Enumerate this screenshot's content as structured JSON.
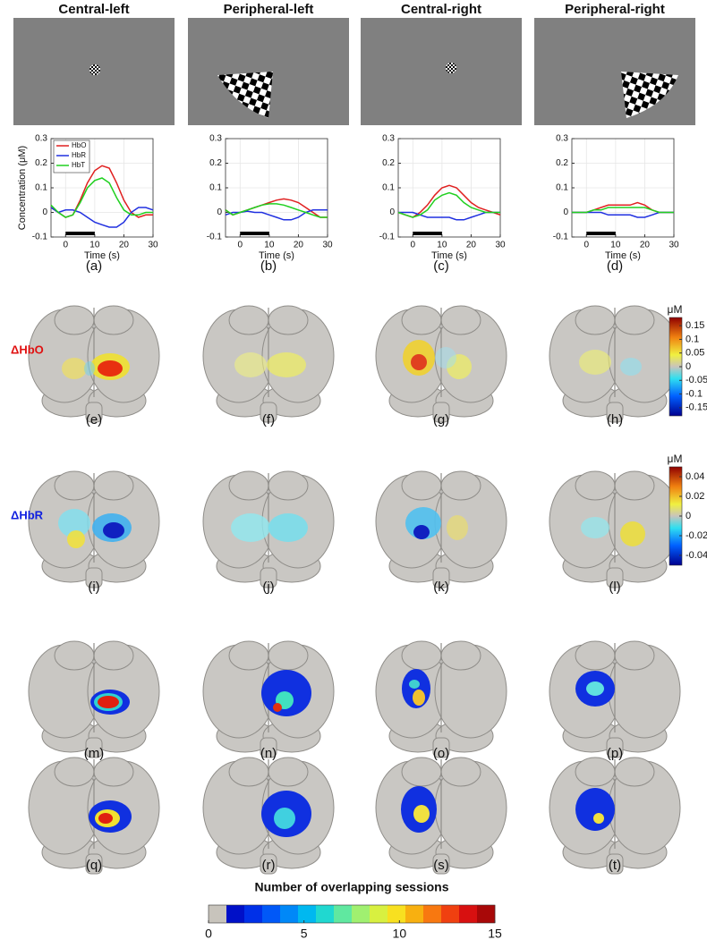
{
  "column_titles": [
    "Central-left",
    "Peripheral-left",
    "Central-right",
    "Peripheral-right"
  ],
  "chart_data": [
    {
      "type": "line",
      "y_label": "Concentration (μM)",
      "x_label": "Time (s)",
      "legend": true,
      "x": [
        -5,
        -2.5,
        0,
        2.5,
        5,
        7.5,
        10,
        12.5,
        15,
        17.5,
        20,
        22.5,
        25,
        27.5,
        30
      ],
      "xlim": [
        -5,
        30
      ],
      "xticks": [
        0,
        10,
        20,
        30
      ],
      "ylim": [
        -0.1,
        0.3
      ],
      "yticks": [
        -0.1,
        0,
        0.1,
        0.2,
        0.3
      ],
      "grid": true,
      "stimulus": [
        0,
        10
      ],
      "series": [
        {
          "name": "HbO",
          "color": "#e02020",
          "values": [
            0.02,
            0.0,
            -0.02,
            -0.01,
            0.05,
            0.12,
            0.17,
            0.19,
            0.18,
            0.12,
            0.05,
            0.0,
            -0.02,
            -0.01,
            -0.01
          ]
        },
        {
          "name": "HbR",
          "color": "#2030e0",
          "values": [
            0.02,
            0.0,
            0.01,
            0.01,
            0.0,
            -0.02,
            -0.04,
            -0.05,
            -0.06,
            -0.06,
            -0.04,
            0.0,
            0.02,
            0.02,
            0.01
          ]
        },
        {
          "name": "HbT",
          "color": "#20d020",
          "values": [
            0.03,
            0.0,
            -0.02,
            -0.01,
            0.04,
            0.1,
            0.13,
            0.14,
            0.12,
            0.06,
            0.01,
            -0.01,
            -0.01,
            0.0,
            0.0
          ]
        }
      ]
    },
    {
      "type": "line",
      "x_label": "Time (s)",
      "legend": false,
      "x": [
        -5,
        -2.5,
        0,
        2.5,
        5,
        7.5,
        10,
        12.5,
        15,
        17.5,
        20,
        22.5,
        25,
        27.5,
        30
      ],
      "xlim": [
        -5,
        30
      ],
      "xticks": [
        0,
        10,
        20,
        30
      ],
      "ylim": [
        -0.1,
        0.3
      ],
      "yticks": [
        -0.1,
        0,
        0.1,
        0.2,
        0.3
      ],
      "grid": true,
      "stimulus": [
        0,
        10
      ],
      "series": [
        {
          "name": "HbO",
          "color": "#e02020",
          "values": [
            0.01,
            -0.01,
            0.0,
            0.01,
            0.02,
            0.03,
            0.04,
            0.05,
            0.055,
            0.05,
            0.04,
            0.02,
            0.0,
            -0.02,
            -0.02
          ]
        },
        {
          "name": "HbR",
          "color": "#2030e0",
          "values": [
            -0.01,
            0.0,
            0.0,
            0.005,
            0.0,
            0.0,
            -0.01,
            -0.02,
            -0.03,
            -0.03,
            -0.02,
            0.0,
            0.01,
            0.01,
            0.01
          ]
        },
        {
          "name": "HbT",
          "color": "#20d020",
          "values": [
            0.01,
            -0.01,
            0.0,
            0.01,
            0.02,
            0.03,
            0.035,
            0.035,
            0.03,
            0.02,
            0.01,
            0.0,
            -0.01,
            -0.02,
            -0.02
          ]
        }
      ]
    },
    {
      "type": "line",
      "x_label": "Time (s)",
      "legend": false,
      "x": [
        -5,
        -2.5,
        0,
        2.5,
        5,
        7.5,
        10,
        12.5,
        15,
        17.5,
        20,
        22.5,
        25,
        27.5,
        30
      ],
      "xlim": [
        -5,
        30
      ],
      "xticks": [
        0,
        10,
        20,
        30
      ],
      "ylim": [
        -0.1,
        0.3
      ],
      "yticks": [
        -0.1,
        0,
        0.1,
        0.2,
        0.3
      ],
      "grid": true,
      "stimulus": [
        0,
        10
      ],
      "series": [
        {
          "name": "HbO",
          "color": "#e02020",
          "values": [
            0.0,
            -0.01,
            -0.02,
            0.0,
            0.03,
            0.07,
            0.1,
            0.11,
            0.1,
            0.07,
            0.04,
            0.02,
            0.01,
            0.0,
            -0.01
          ]
        },
        {
          "name": "HbR",
          "color": "#2030e0",
          "values": [
            0.0,
            0.0,
            0.0,
            -0.01,
            -0.02,
            -0.02,
            -0.02,
            -0.02,
            -0.03,
            -0.03,
            -0.02,
            -0.01,
            0.0,
            0.0,
            0.0
          ]
        },
        {
          "name": "HbT",
          "color": "#20d020",
          "values": [
            0.0,
            -0.01,
            -0.02,
            -0.01,
            0.01,
            0.05,
            0.07,
            0.08,
            0.07,
            0.04,
            0.02,
            0.01,
            0.0,
            0.0,
            0.0
          ]
        }
      ]
    },
    {
      "type": "line",
      "x_label": "Time (s)",
      "legend": false,
      "x": [
        -5,
        -2.5,
        0,
        2.5,
        5,
        7.5,
        10,
        12.5,
        15,
        17.5,
        20,
        22.5,
        25,
        27.5,
        30
      ],
      "xlim": [
        -5,
        30
      ],
      "xticks": [
        0,
        10,
        20,
        30
      ],
      "ylim": [
        -0.1,
        0.3
      ],
      "yticks": [
        -0.1,
        0,
        0.1,
        0.2,
        0.3
      ],
      "grid": true,
      "stimulus": [
        0,
        10
      ],
      "series": [
        {
          "name": "HbO",
          "color": "#e02020",
          "values": [
            0.0,
            0.0,
            0.0,
            0.01,
            0.02,
            0.03,
            0.03,
            0.03,
            0.03,
            0.04,
            0.03,
            0.01,
            0.0,
            0.0,
            0.0
          ]
        },
        {
          "name": "HbR",
          "color": "#2030e0",
          "values": [
            0.0,
            0.0,
            0.0,
            0.0,
            0.0,
            -0.01,
            -0.01,
            -0.01,
            -0.01,
            -0.02,
            -0.02,
            -0.01,
            0.0,
            0.0,
            0.0
          ]
        },
        {
          "name": "HbT",
          "color": "#20d020",
          "values": [
            0.0,
            0.0,
            0.0,
            0.01,
            0.01,
            0.02,
            0.02,
            0.02,
            0.02,
            0.02,
            0.02,
            0.01,
            0.0,
            0.0,
            0.0
          ]
        }
      ]
    }
  ],
  "panel_labels": [
    "(a)",
    "(b)",
    "(c)",
    "(d)",
    "(e)",
    "(f)",
    "(g)",
    "(h)",
    "(i)",
    "(j)",
    "(k)",
    "(l)",
    "(m)",
    "(n)",
    "(o)",
    "(p)",
    "(q)",
    "(r)",
    "(s)",
    "(t)"
  ],
  "row_labels": [
    {
      "text": "ΔHbO",
      "color": "#e01010"
    },
    {
      "text": "ΔHbR",
      "color": "#1020e0"
    }
  ],
  "colorbars": [
    {
      "unit": "μM",
      "lim": [
        -0.18,
        0.18
      ],
      "ticks": [
        0.15,
        0.1,
        0.05,
        0,
        -0.05,
        -0.1,
        -0.15
      ]
    },
    {
      "unit": "μM",
      "lim": [
        -0.05,
        0.05
      ],
      "ticks": [
        0.04,
        0.02,
        0,
        -0.02,
        -0.04
      ]
    }
  ],
  "session_colorbar": {
    "title": "Number of overlapping sessions",
    "lim": [
      0,
      15
    ],
    "ticks": [
      0,
      5,
      10,
      15
    ],
    "colors": [
      "#c8c4bc",
      "#0010c8",
      "#0030e8",
      "#0058f8",
      "#0088f8",
      "#00b8f0",
      "#20d8d0",
      "#60e8a0",
      "#a0f070",
      "#d8f040",
      "#f8e020",
      "#f8b010",
      "#f87810",
      "#f04010",
      "#d81010",
      "#a80808"
    ]
  }
}
